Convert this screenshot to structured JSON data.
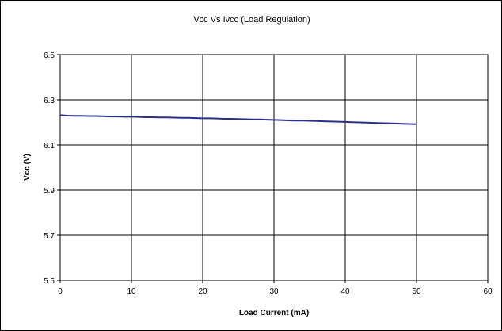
{
  "colors": {
    "series": "#2b2f8a",
    "grid": "#000000",
    "background": "#ffffff"
  },
  "chart_data": {
    "type": "line",
    "title": "Vcc Vs Ivcc (Load Regulation)",
    "xlabel": "Load Current (mA)",
    "ylabel": "Vcc (V)",
    "xlim": [
      0,
      60
    ],
    "ylim": [
      5.5,
      6.5
    ],
    "x_ticks": [
      "0",
      "10",
      "20",
      "30",
      "40",
      "50",
      "60"
    ],
    "y_ticks": [
      "6.5",
      "6.3",
      "6.1",
      "5.9",
      "5.7",
      "5.5"
    ],
    "grid": true,
    "legend": "none",
    "series": [
      {
        "x": [
          0,
          1,
          2,
          3,
          4,
          5,
          6,
          7,
          8,
          9,
          10,
          11,
          12,
          13,
          14,
          15,
          16,
          17,
          18,
          19,
          20,
          21,
          22,
          23,
          24,
          25,
          26,
          27,
          28,
          29,
          30,
          31,
          32,
          33,
          34,
          35,
          36,
          37,
          38,
          39,
          40,
          41,
          42,
          43,
          44,
          45,
          46,
          47,
          48,
          49,
          50
        ],
        "values": [
          6.232,
          6.23,
          6.229,
          6.229,
          6.228,
          6.228,
          6.227,
          6.226,
          6.226,
          6.225,
          6.225,
          6.224,
          6.223,
          6.223,
          6.222,
          6.222,
          6.221,
          6.22,
          6.22,
          6.219,
          6.218,
          6.218,
          6.217,
          6.216,
          6.216,
          6.215,
          6.214,
          6.213,
          6.213,
          6.212,
          6.211,
          6.21,
          6.209,
          6.208,
          6.208,
          6.207,
          6.206,
          6.205,
          6.204,
          6.203,
          6.202,
          6.201,
          6.2,
          6.199,
          6.198,
          6.197,
          6.196,
          6.195,
          6.194,
          6.193,
          6.192
        ]
      }
    ]
  }
}
